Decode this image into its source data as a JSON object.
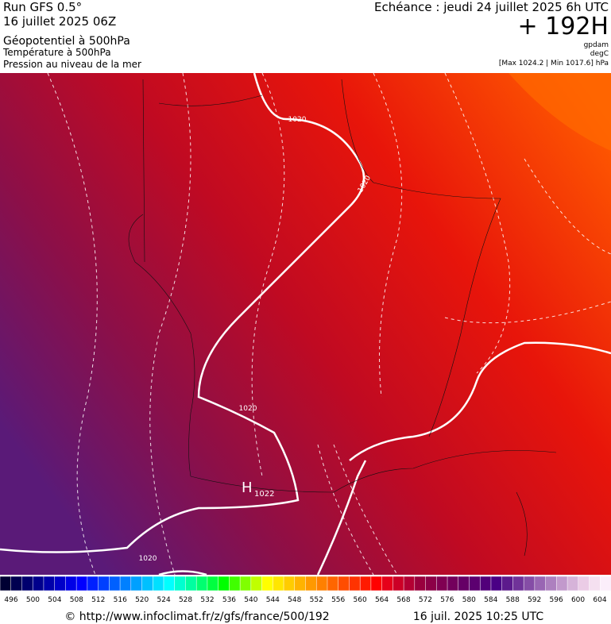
{
  "header": {
    "left": [
      "Run GFS 0.5°",
      "16 juillet 2025 06Z",
      "Géopotentiel à 500hPa",
      "Température à 500hPa",
      "Pression au niveau de la mer"
    ],
    "echeance": "Echéance : jeudi 24 juillet 2025 6h UTC",
    "lead": "+ 192H",
    "units": [
      "gpdam",
      "degC",
      "[Max 1024.2 | Min 1017.6] hPa"
    ]
  },
  "map": {
    "isobar_labels": [
      "1020",
      "1020",
      "1020",
      "1020"
    ],
    "high": {
      "symbol": "H",
      "value": "1022"
    }
  },
  "legend": {
    "colors": [
      "#000033",
      "#000050",
      "#00006e",
      "#00008c",
      "#0000aa",
      "#0000c8",
      "#0000e6",
      "#0000ff",
      "#0020ff",
      "#0040ff",
      "#0060ff",
      "#0080ff",
      "#00a0ff",
      "#00c0ff",
      "#00e0ff",
      "#00ffff",
      "#00ffd0",
      "#00ffa0",
      "#00ff70",
      "#00ff40",
      "#00ff00",
      "#40ff00",
      "#80ff00",
      "#c0ff00",
      "#ffff00",
      "#ffe600",
      "#ffcc00",
      "#ffb300",
      "#ff9900",
      "#ff8000",
      "#ff6600",
      "#ff4d00",
      "#ff3300",
      "#ff1a00",
      "#ff0000",
      "#e6001a",
      "#cc0026",
      "#b30033",
      "#99003d",
      "#8c0047",
      "#800052",
      "#73005c",
      "#660066",
      "#5c0070",
      "#52007a",
      "#4a0085",
      "#5c1a8c",
      "#703399",
      "#854da6",
      "#9966b3",
      "#ad80bf",
      "#c299cc",
      "#d6b3d9",
      "#ebcce6",
      "#f5e0f0",
      "#fbeefa"
    ],
    "labels": [
      "496",
      "500",
      "504",
      "508",
      "512",
      "516",
      "520",
      "524",
      "528",
      "532",
      "536",
      "540",
      "544",
      "548",
      "552",
      "556",
      "560",
      "564",
      "568",
      "572",
      "576",
      "580",
      "584",
      "588",
      "592",
      "596",
      "600",
      "604"
    ]
  },
  "footer": {
    "url": "© http://www.infoclimat.fr/z/gfs/france/500/192",
    "date": "16 juil. 2025 10:25 UTC"
  }
}
